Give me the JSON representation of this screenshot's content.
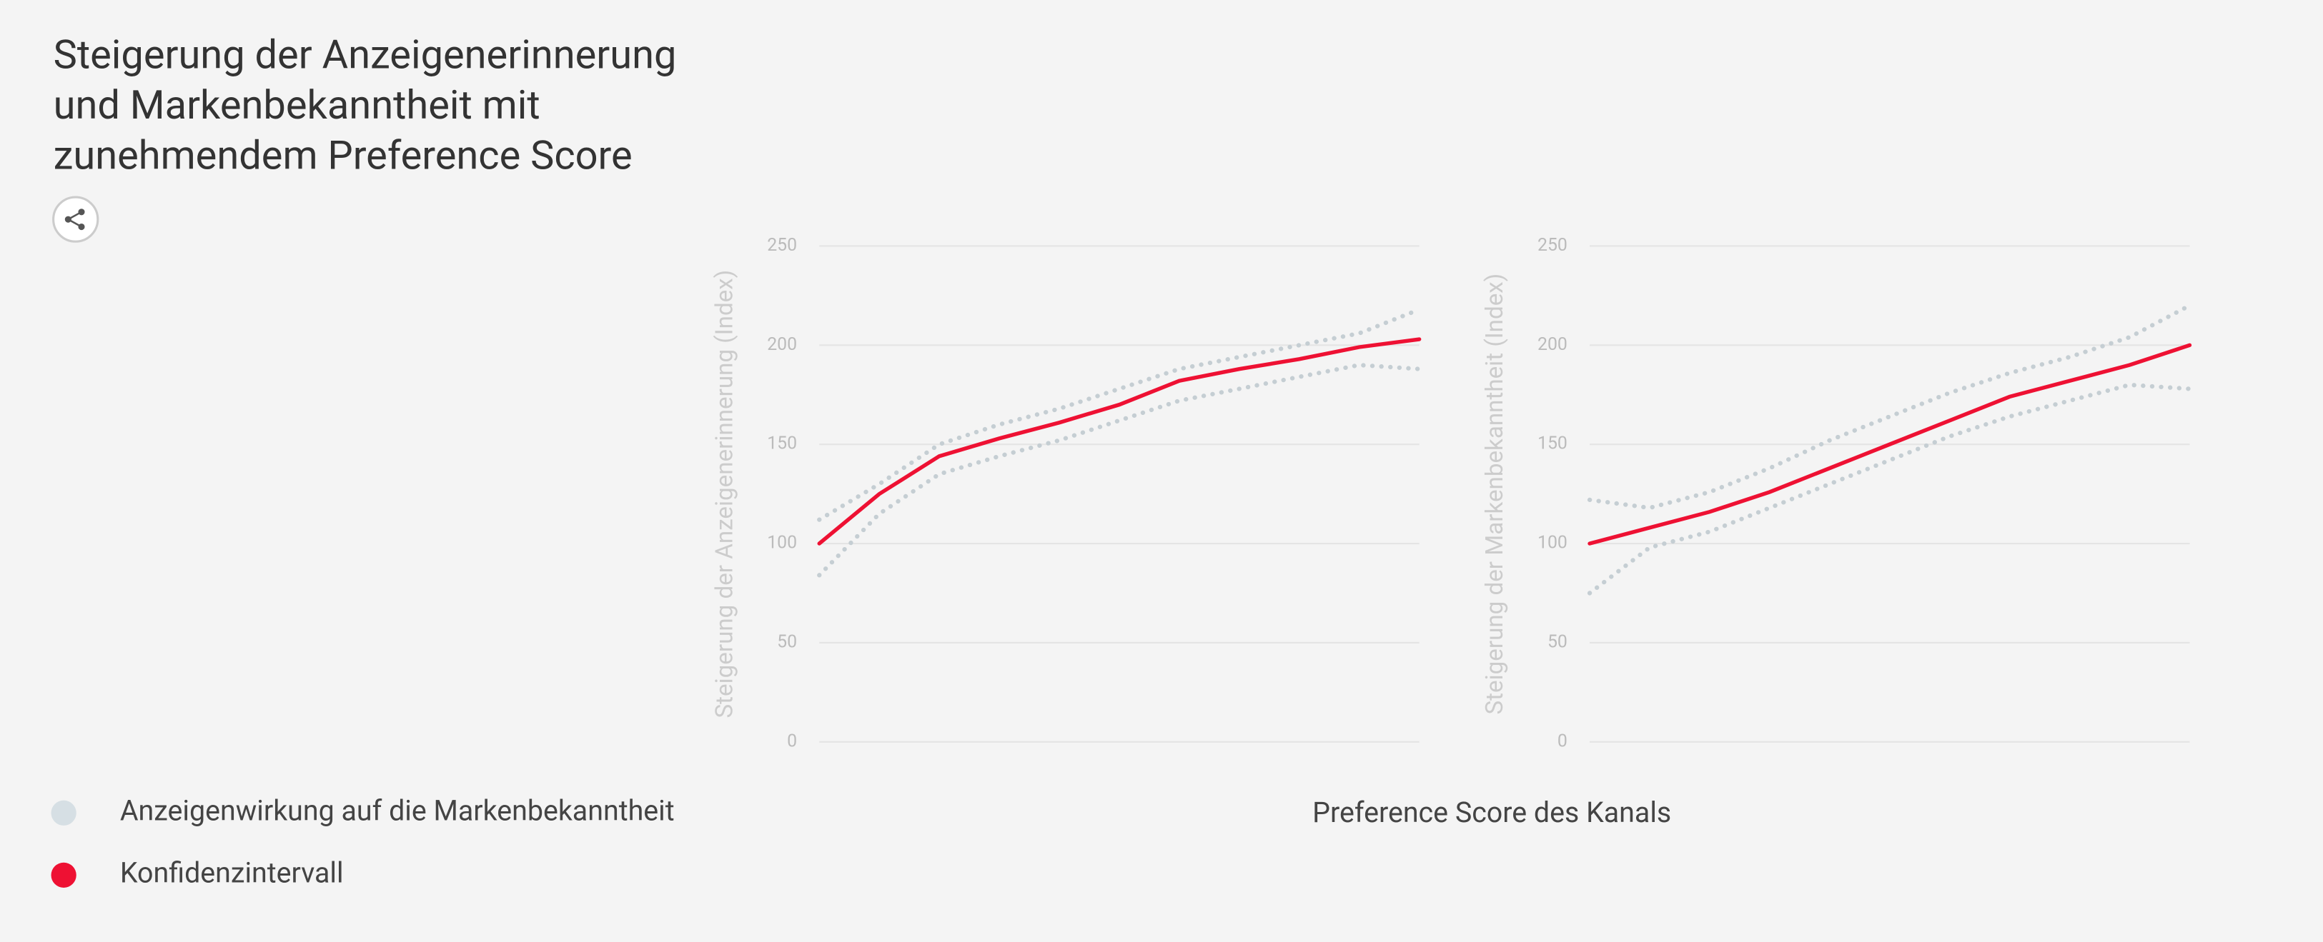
{
  "title": [
    "Steigerung der Anzeigenerinnerung",
    "und Markenbekanntheit mit",
    "zunehmendem Preference Score"
  ],
  "legend": [
    {
      "name": "Anzeigenwirkung auf die Markenbekanntheit",
      "color": "#d6dfe4"
    },
    {
      "name": "Konfidenzintervall",
      "color": "#ee1133"
    }
  ],
  "xlabel": "Preference Score des Kanals",
  "chart_data": [
    {
      "type": "line",
      "ylabel": "Steigerung der Anzeigenerinnerung (Index)",
      "ylim": [
        0,
        250
      ],
      "yticks": [
        0,
        50,
        100,
        150,
        200,
        250
      ],
      "grid": true,
      "series": [
        {
          "color": "#c5ced3",
          "style": "dotted",
          "values": [
            112,
            130,
            150,
            160,
            168,
            178,
            188,
            194,
            200,
            206,
            218
          ]
        },
        {
          "color": "#c5ced3",
          "style": "dotted",
          "values": [
            84,
            115,
            135,
            144,
            152,
            162,
            172,
            178,
            184,
            190,
            188
          ]
        },
        {
          "color": "#ee1133",
          "style": "solid",
          "values": [
            100,
            125,
            144,
            153,
            161,
            170,
            182,
            188,
            193,
            199,
            203
          ]
        }
      ]
    },
    {
      "type": "line",
      "ylabel": "Steigerung der Markenbekanntheit (Index)",
      "ylim": [
        0,
        250
      ],
      "yticks": [
        0,
        50,
        100,
        150,
        200,
        250
      ],
      "grid": true,
      "series": [
        {
          "color": "#c5ced3",
          "style": "dotted",
          "values": [
            122,
            118,
            126,
            138,
            152,
            164,
            176,
            186,
            194,
            204,
            220
          ]
        },
        {
          "color": "#c5ced3",
          "style": "dotted",
          "values": [
            75,
            98,
            106,
            118,
            130,
            142,
            154,
            164,
            172,
            180,
            178
          ]
        },
        {
          "color": "#ee1133",
          "style": "solid",
          "values": [
            100,
            108,
            116,
            126,
            138,
            150,
            162,
            174,
            182,
            190,
            200
          ]
        }
      ]
    }
  ]
}
